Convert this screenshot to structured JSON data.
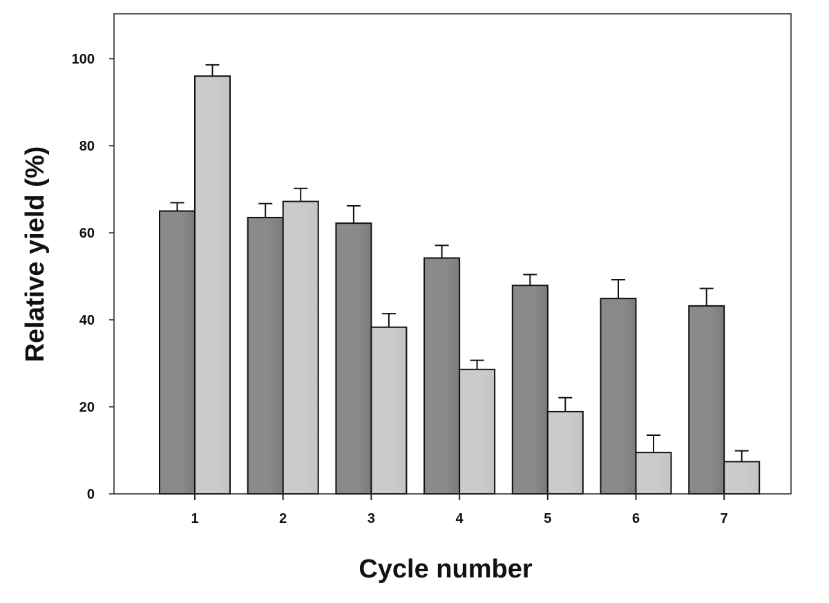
{
  "chart_data": {
    "type": "bar",
    "title": "",
    "xlabel": "Cycle number",
    "ylabel": "Relative yield (%)",
    "categories": [
      "1",
      "2",
      "3",
      "4",
      "5",
      "6",
      "7"
    ],
    "series": [
      {
        "values": [
          65.0,
          63.5,
          62.2,
          54.2,
          47.9,
          44.9,
          43.2
        ],
        "errors": [
          1.9,
          3.2,
          4.0,
          2.9,
          2.5,
          4.3,
          4.0
        ],
        "color": "#8a8a8a"
      },
      {
        "values": [
          96.0,
          67.2,
          38.3,
          28.6,
          18.9,
          9.5,
          7.4
        ],
        "errors": [
          2.6,
          3.0,
          3.1,
          2.1,
          3.2,
          4.0,
          2.5
        ],
        "color": "#cbcbcb"
      }
    ],
    "ylim": [
      0,
      110
    ],
    "yticks": [
      "0",
      "20",
      "40",
      "60",
      "80",
      "100"
    ],
    "grid": false,
    "legend": "none",
    "error_bars": "upper only"
  }
}
